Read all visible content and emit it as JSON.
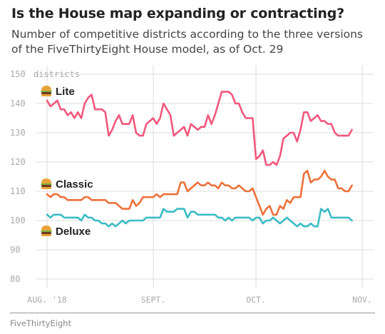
{
  "title": "Is the House map expanding or contracting?",
  "subtitle": "Number of competitive districts according to the three versions of the FiveThirtyEight House model, as of Oct. 29",
  "source": "FiveThirtyEight",
  "chart_data": {
    "type": "line",
    "title": "Is the House map expanding or contracting?",
    "subtitle": "Number of competitive districts according to the three versions of the FiveThirtyEight House model, as of Oct. 29",
    "ylabel": "districts",
    "ylim": [
      80,
      150
    ],
    "yticks": [
      80,
      90,
      100,
      110,
      120,
      130,
      140,
      150
    ],
    "ytick_labels": [
      "80",
      "90",
      "100",
      "110",
      "120",
      "130",
      "140",
      "150"
    ],
    "xlim": [
      "2018-08-01",
      "2018-11-01"
    ],
    "xticks": [
      "2018-08-01",
      "2018-09-01",
      "2018-10-01",
      "2018-11-01"
    ],
    "xtick_labels": [
      "AUG. '18",
      "SEPT.",
      "OCT.",
      "NOV."
    ],
    "grid": true,
    "legend": "inline labels",
    "series": [
      {
        "name": "Lite",
        "color": "#f2577c",
        "x": [
          "2018-08-01",
          "2018-08-02",
          "2018-08-03",
          "2018-08-04",
          "2018-08-05",
          "2018-08-06",
          "2018-08-07",
          "2018-08-08",
          "2018-08-09",
          "2018-08-10",
          "2018-08-11",
          "2018-08-12",
          "2018-08-13",
          "2018-08-14",
          "2018-08-15",
          "2018-08-16",
          "2018-08-17",
          "2018-08-18",
          "2018-08-19",
          "2018-08-20",
          "2018-08-21",
          "2018-08-22",
          "2018-08-23",
          "2018-08-24",
          "2018-08-25",
          "2018-08-26",
          "2018-08-27",
          "2018-08-28",
          "2018-08-29",
          "2018-08-30",
          "2018-08-31",
          "2018-09-01",
          "2018-09-02",
          "2018-09-03",
          "2018-09-04",
          "2018-09-05",
          "2018-09-06",
          "2018-09-07",
          "2018-09-08",
          "2018-09-09",
          "2018-09-10",
          "2018-09-11",
          "2018-09-12",
          "2018-09-13",
          "2018-09-14",
          "2018-09-15",
          "2018-09-16",
          "2018-09-17",
          "2018-09-18",
          "2018-09-19",
          "2018-09-20",
          "2018-09-21",
          "2018-09-22",
          "2018-09-23",
          "2018-09-24",
          "2018-09-25",
          "2018-09-26",
          "2018-09-27",
          "2018-09-28",
          "2018-09-29",
          "2018-09-30",
          "2018-10-01",
          "2018-10-02",
          "2018-10-03",
          "2018-10-04",
          "2018-10-05",
          "2018-10-06",
          "2018-10-07",
          "2018-10-08",
          "2018-10-09",
          "2018-10-10",
          "2018-10-11",
          "2018-10-12",
          "2018-10-13",
          "2018-10-14",
          "2018-10-15",
          "2018-10-16",
          "2018-10-17",
          "2018-10-18",
          "2018-10-19",
          "2018-10-20",
          "2018-10-21",
          "2018-10-22",
          "2018-10-23",
          "2018-10-24",
          "2018-10-25",
          "2018-10-26",
          "2018-10-27",
          "2018-10-28",
          "2018-10-29"
        ],
        "values": [
          141,
          139,
          140,
          141,
          138,
          138,
          136,
          137,
          135,
          137,
          135,
          140,
          142,
          143,
          138,
          138,
          138,
          137,
          129,
          131,
          134,
          136,
          133,
          133,
          133,
          136,
          130,
          129,
          129,
          133,
          134,
          135,
          133,
          135,
          140,
          138,
          136,
          129,
          130,
          131,
          132,
          129,
          133,
          132,
          131,
          132,
          132,
          136,
          133,
          136,
          140,
          144,
          144,
          144,
          143,
          140,
          140,
          137,
          135,
          135,
          135,
          121,
          122,
          124,
          119,
          119,
          120,
          119,
          122,
          128,
          129,
          130,
          130,
          127,
          131,
          137,
          137,
          134,
          135,
          136,
          134,
          134,
          133,
          133,
          130,
          129,
          129,
          129,
          129,
          131
        ]
      },
      {
        "name": "Classic",
        "color": "#ed713a",
        "x": [
          "2018-08-01",
          "2018-08-02",
          "2018-08-03",
          "2018-08-04",
          "2018-08-05",
          "2018-08-06",
          "2018-08-07",
          "2018-08-08",
          "2018-08-09",
          "2018-08-10",
          "2018-08-11",
          "2018-08-12",
          "2018-08-13",
          "2018-08-14",
          "2018-08-15",
          "2018-08-16",
          "2018-08-17",
          "2018-08-18",
          "2018-08-19",
          "2018-08-20",
          "2018-08-21",
          "2018-08-22",
          "2018-08-23",
          "2018-08-24",
          "2018-08-25",
          "2018-08-26",
          "2018-08-27",
          "2018-08-28",
          "2018-08-29",
          "2018-08-30",
          "2018-08-31",
          "2018-09-01",
          "2018-09-02",
          "2018-09-03",
          "2018-09-04",
          "2018-09-05",
          "2018-09-06",
          "2018-09-07",
          "2018-09-08",
          "2018-09-09",
          "2018-09-10",
          "2018-09-11",
          "2018-09-12",
          "2018-09-13",
          "2018-09-14",
          "2018-09-15",
          "2018-09-16",
          "2018-09-17",
          "2018-09-18",
          "2018-09-19",
          "2018-09-20",
          "2018-09-21",
          "2018-09-22",
          "2018-09-23",
          "2018-09-24",
          "2018-09-25",
          "2018-09-26",
          "2018-09-27",
          "2018-09-28",
          "2018-09-29",
          "2018-09-30",
          "2018-10-01",
          "2018-10-02",
          "2018-10-03",
          "2018-10-04",
          "2018-10-05",
          "2018-10-06",
          "2018-10-07",
          "2018-10-08",
          "2018-10-09",
          "2018-10-10",
          "2018-10-11",
          "2018-10-12",
          "2018-10-13",
          "2018-10-14",
          "2018-10-15",
          "2018-10-16",
          "2018-10-17",
          "2018-10-18",
          "2018-10-19",
          "2018-10-20",
          "2018-10-21",
          "2018-10-22",
          "2018-10-23",
          "2018-10-24",
          "2018-10-25",
          "2018-10-26",
          "2018-10-27",
          "2018-10-28",
          "2018-10-29"
        ],
        "values": [
          109,
          108,
          109,
          109,
          108,
          108,
          107,
          107,
          107,
          107,
          107,
          108,
          108,
          107,
          107,
          107,
          107,
          107,
          106,
          106,
          106,
          105,
          104,
          104,
          104,
          107,
          105,
          106,
          108,
          108,
          108,
          108,
          109,
          108,
          109,
          109,
          109,
          109,
          109,
          113,
          113,
          110,
          111,
          112,
          113,
          112,
          112,
          113,
          112,
          112,
          111,
          113,
          112,
          112,
          111,
          111,
          112,
          111,
          110,
          110,
          111,
          108,
          105,
          102,
          104,
          105,
          102,
          102,
          105,
          104,
          107,
          106,
          108,
          108,
          108,
          116,
          117,
          113,
          114,
          114,
          115,
          117,
          115,
          114,
          114,
          111,
          111,
          110,
          110,
          112
        ]
      },
      {
        "name": "Deluxe",
        "color": "#3bbcc4",
        "x": [
          "2018-08-01",
          "2018-08-02",
          "2018-08-03",
          "2018-08-04",
          "2018-08-05",
          "2018-08-06",
          "2018-08-07",
          "2018-08-08",
          "2018-08-09",
          "2018-08-10",
          "2018-08-11",
          "2018-08-12",
          "2018-08-13",
          "2018-08-14",
          "2018-08-15",
          "2018-08-16",
          "2018-08-17",
          "2018-08-18",
          "2018-08-19",
          "2018-08-20",
          "2018-08-21",
          "2018-08-22",
          "2018-08-23",
          "2018-08-24",
          "2018-08-25",
          "2018-08-26",
          "2018-08-27",
          "2018-08-28",
          "2018-08-29",
          "2018-08-30",
          "2018-08-31",
          "2018-09-01",
          "2018-09-02",
          "2018-09-03",
          "2018-09-04",
          "2018-09-05",
          "2018-09-06",
          "2018-09-07",
          "2018-09-08",
          "2018-09-09",
          "2018-09-10",
          "2018-09-11",
          "2018-09-12",
          "2018-09-13",
          "2018-09-14",
          "2018-09-15",
          "2018-09-16",
          "2018-09-17",
          "2018-09-18",
          "2018-09-19",
          "2018-09-20",
          "2018-09-21",
          "2018-09-22",
          "2018-09-23",
          "2018-09-24",
          "2018-09-25",
          "2018-09-26",
          "2018-09-27",
          "2018-09-28",
          "2018-09-29",
          "2018-09-30",
          "2018-10-01",
          "2018-10-02",
          "2018-10-03",
          "2018-10-04",
          "2018-10-05",
          "2018-10-06",
          "2018-10-07",
          "2018-10-08",
          "2018-10-09",
          "2018-10-10",
          "2018-10-11",
          "2018-10-12",
          "2018-10-13",
          "2018-10-14",
          "2018-10-15",
          "2018-10-16",
          "2018-10-17",
          "2018-10-18",
          "2018-10-19",
          "2018-10-20",
          "2018-10-21",
          "2018-10-22",
          "2018-10-23",
          "2018-10-24",
          "2018-10-25",
          "2018-10-26",
          "2018-10-27",
          "2018-10-28",
          "2018-10-29"
        ],
        "values": [
          102,
          101,
          102,
          102,
          102,
          101,
          101,
          101,
          101,
          101,
          100,
          102,
          101,
          101,
          100,
          100,
          99,
          99,
          98,
          99,
          98,
          99,
          100,
          99,
          100,
          100,
          100,
          100,
          100,
          101,
          101,
          101,
          101,
          101,
          104,
          103,
          103,
          103,
          104,
          104,
          104,
          101,
          103,
          103,
          102,
          102,
          102,
          102,
          102,
          102,
          101,
          101,
          100,
          101,
          100,
          101,
          101,
          101,
          101,
          101,
          100,
          101,
          101,
          99,
          100,
          100,
          101,
          100,
          99,
          100,
          101,
          100,
          99,
          98,
          99,
          98,
          98,
          99,
          98,
          98,
          104,
          103,
          104,
          101,
          101,
          101,
          101,
          101,
          101,
          100
        ]
      }
    ],
    "annotations": [
      {
        "text": "Lite",
        "series": "Lite"
      },
      {
        "text": "Classic",
        "series": "Classic"
      },
      {
        "text": "Deluxe",
        "series": "Deluxe"
      }
    ]
  }
}
